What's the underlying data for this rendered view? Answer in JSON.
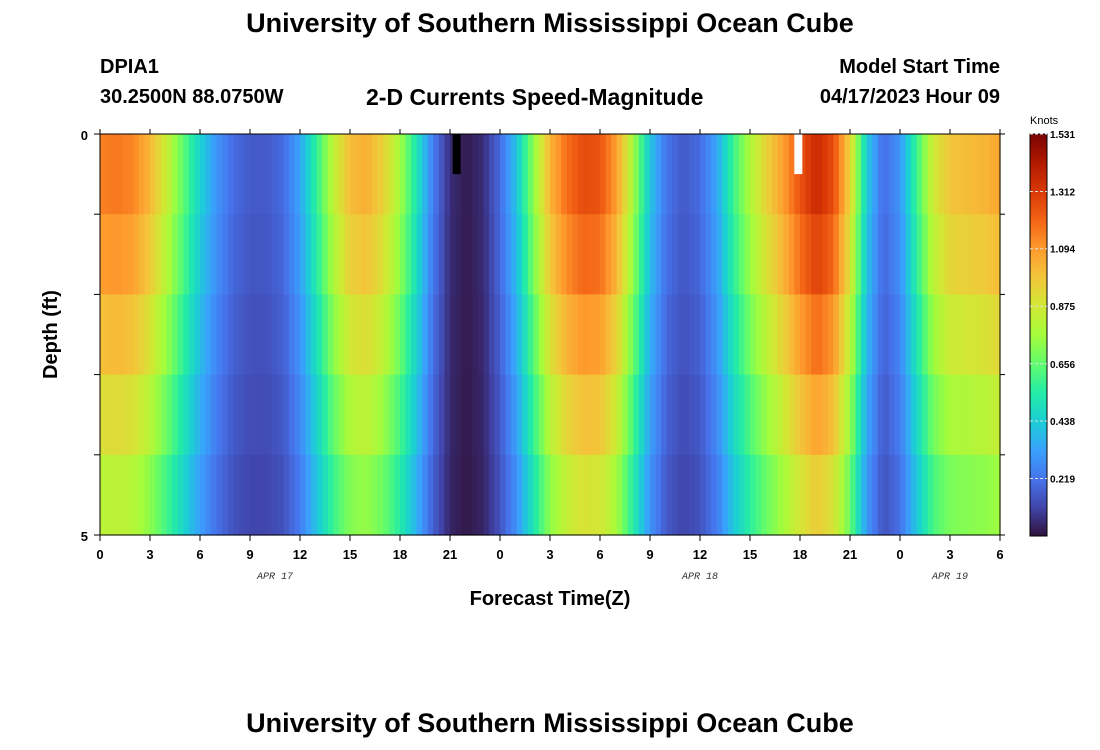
{
  "header": {
    "title": "University of Southern Mississippi Ocean Cube",
    "station_id": "DPIA1",
    "station_coords": "30.2500N  88.0750W",
    "plot_title": "2-D Currents Speed-Magnitude",
    "start_label": "Model Start Time",
    "start_value": "04/17/2023 Hour 09"
  },
  "footer": {
    "title": "University of Southern Mississippi Ocean Cube"
  },
  "chart_data": {
    "type": "heatmap",
    "title": "2-D Currents Speed-Magnitude",
    "xlabel": "Forecast Time(Z)",
    "ylabel": "Depth (ft)",
    "x_tick_labels": [
      "0",
      "3",
      "6",
      "9",
      "12",
      "15",
      "18",
      "21",
      "0",
      "3",
      "6",
      "9",
      "12",
      "15",
      "18",
      "21",
      "0",
      "3",
      "6"
    ],
    "x_tick_hours": [
      0,
      3,
      6,
      9,
      12,
      15,
      18,
      21,
      24,
      27,
      30,
      33,
      36,
      39,
      42,
      45,
      48,
      51,
      54
    ],
    "xlim_hours": [
      0,
      54
    ],
    "date_labels": [
      {
        "text": "APR 17",
        "hour": 10.5
      },
      {
        "text": "APR 18",
        "hour": 36
      },
      {
        "text": "APR 19",
        "hour": 51
      }
    ],
    "y_tick_labels": [
      "0",
      "5"
    ],
    "ylim": [
      0,
      5
    ],
    "depth_levels": [
      0,
      1,
      2,
      3,
      4,
      5
    ],
    "colorbar": {
      "unit": "Knots",
      "ticks": [
        "1.531",
        "1.312",
        "1.094",
        "0.875",
        "0.656",
        "0.438",
        "0.219"
      ],
      "tick_values": [
        1.531,
        1.312,
        1.094,
        0.875,
        0.656,
        0.438,
        0.219
      ],
      "range": [
        0,
        1.531
      ],
      "colors": [
        "#30123b",
        "#4145ab",
        "#4675ed",
        "#39a2fc",
        "#1bcfd4",
        "#24eca6",
        "#61fc6c",
        "#a4fc3b",
        "#d1e834",
        "#f3c63a",
        "#fe9b2d",
        "#f36315",
        "#d93806",
        "#b11901",
        "#7a0402"
      ]
    },
    "speed_by_hour_surface": [
      1.16,
      1.18,
      1.15,
      1.04,
      0.86,
      0.66,
      0.46,
      0.3,
      0.2,
      0.16,
      0.16,
      0.2,
      0.34,
      0.58,
      0.84,
      1.02,
      1.06,
      0.96,
      0.78,
      0.52,
      0.24,
      0.06,
      0.02,
      0.06,
      0.2,
      0.42,
      0.74,
      1.04,
      1.2,
      1.28,
      1.26,
      1.1,
      0.78,
      0.42,
      0.22,
      0.16,
      0.2,
      0.34,
      0.6,
      0.8,
      0.96,
      1.1,
      1.26,
      1.38,
      1.28,
      0.96,
      0.44,
      0.2,
      0.3,
      0.6,
      0.88,
      1.0,
      1.02,
      1.04,
      1.08
    ],
    "depth_factors": [
      1.0,
      0.97,
      0.9,
      0.82,
      0.74,
      0.66
    ],
    "markers": [
      {
        "hour": 21.4,
        "depth": [
          0,
          0.5
        ],
        "color": "#000000"
      },
      {
        "hour": 41.9,
        "depth": [
          0,
          0.5
        ],
        "color": "#ffffff"
      }
    ]
  }
}
